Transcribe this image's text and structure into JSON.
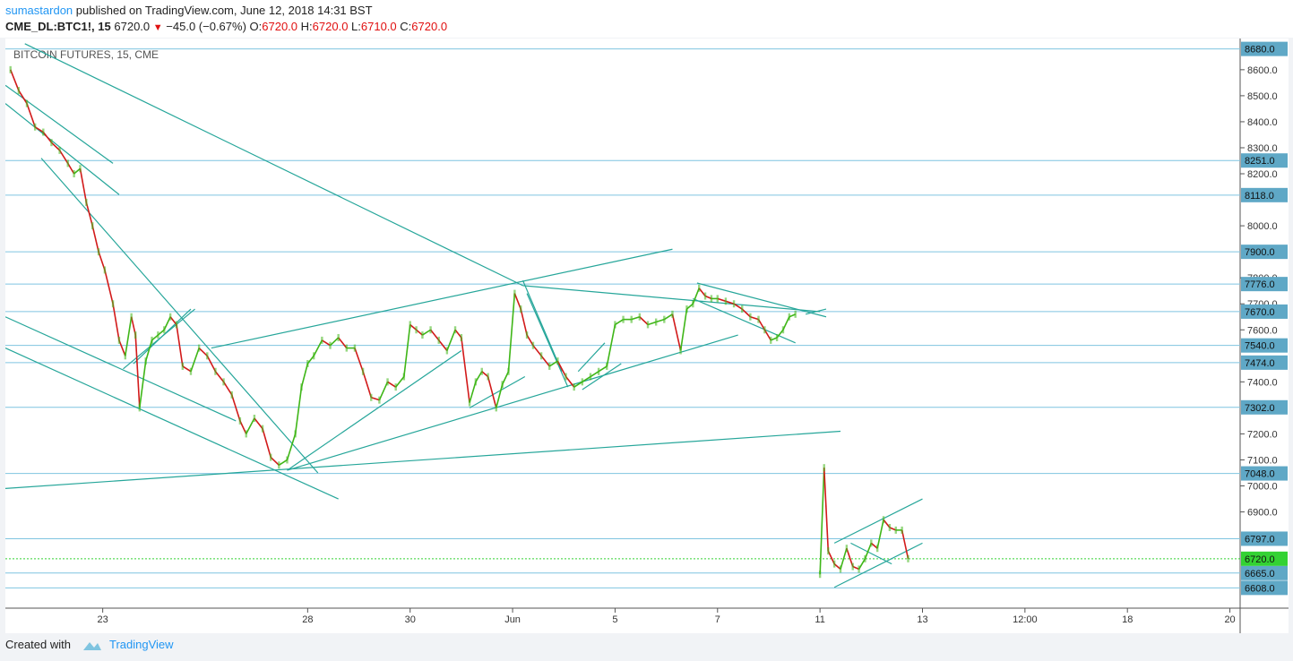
{
  "header": {
    "author": "sumastardon",
    "published_text": "published on TradingView.com, June 12, 2018 14:31 BST",
    "symbol": "CME_DL:BTC1!, 15",
    "last_price": "6720.0",
    "change": "−45.0 (−0.67%)",
    "o_label": "O:",
    "o_value": "6720.0",
    "h_label": "H:",
    "h_value": "6720.0",
    "l_label": "L:",
    "l_value": "6710.0",
    "c_label": "C:",
    "c_value": "6720.0"
  },
  "footer": {
    "created_with": "Created with",
    "brand": "TradingView"
  },
  "colors": {
    "up": "#3fb618",
    "down": "#d21a1a",
    "trend": "#26a69a",
    "level_line": "#7fc4e0",
    "label_bg": "#5fa8c6",
    "last_bg": "#33d233"
  },
  "chart_data": {
    "type": "line",
    "title": "BITCOIN FUTURES, 15, CME",
    "ylim": [
      6530,
      8720
    ],
    "y_ticks": [
      8600,
      8500,
      8400,
      8300,
      8200,
      8000,
      7800,
      7700,
      7600,
      7400,
      7200,
      7100,
      7000,
      6900
    ],
    "x_ticks": [
      {
        "label": "23",
        "t": 1.4
      },
      {
        "label": "28",
        "t": 3.4
      },
      {
        "label": "30",
        "t": 4.4
      },
      {
        "label": "Jun",
        "t": 5.4
      },
      {
        "label": "5",
        "t": 6.4
      },
      {
        "label": "7",
        "t": 7.4
      },
      {
        "label": "11",
        "t": 8.4
      },
      {
        "label": "13",
        "t": 9.4
      },
      {
        "label": "12:00",
        "t": 10.4
      },
      {
        "label": "18",
        "t": 11.4
      },
      {
        "label": "20",
        "t": 12.4
      }
    ],
    "xlim": [
      0.45,
      12.5
    ],
    "last_price": 6720,
    "levels": [
      8680,
      8251,
      8118,
      7900,
      7776,
      7670,
      7540,
      7474,
      7302,
      7048,
      6797,
      6665,
      6608
    ],
    "series": [
      {
        "values": [
          [
            0.5,
            8600
          ],
          [
            0.58,
            8520
          ],
          [
            0.66,
            8470
          ],
          [
            0.74,
            8380
          ],
          [
            0.82,
            8360
          ],
          [
            0.9,
            8320
          ],
          [
            0.98,
            8290
          ],
          [
            1.06,
            8240
          ],
          [
            1.12,
            8200
          ],
          [
            1.18,
            8220
          ],
          [
            1.24,
            8090
          ],
          [
            1.3,
            8000
          ],
          [
            1.36,
            7900
          ],
          [
            1.42,
            7830
          ],
          [
            1.5,
            7700
          ],
          [
            1.56,
            7560
          ],
          [
            1.62,
            7500
          ],
          [
            1.68,
            7650
          ],
          [
            1.72,
            7580
          ],
          [
            1.76,
            7300
          ],
          [
            1.82,
            7480
          ],
          [
            1.88,
            7560
          ],
          [
            1.94,
            7580
          ],
          [
            2.0,
            7600
          ],
          [
            2.06,
            7650
          ],
          [
            2.12,
            7620
          ],
          [
            2.18,
            7460
          ],
          [
            2.26,
            7440
          ],
          [
            2.34,
            7530
          ],
          [
            2.42,
            7500
          ],
          [
            2.5,
            7440
          ],
          [
            2.58,
            7400
          ],
          [
            2.66,
            7350
          ],
          [
            2.74,
            7250
          ],
          [
            2.8,
            7200
          ],
          [
            2.88,
            7260
          ],
          [
            2.96,
            7220
          ],
          [
            3.04,
            7110
          ],
          [
            3.12,
            7080
          ],
          [
            3.2,
            7100
          ],
          [
            3.28,
            7200
          ],
          [
            3.34,
            7380
          ],
          [
            3.4,
            7470
          ],
          [
            3.46,
            7500
          ],
          [
            3.54,
            7560
          ],
          [
            3.62,
            7540
          ],
          [
            3.7,
            7570
          ],
          [
            3.78,
            7530
          ],
          [
            3.86,
            7530
          ],
          [
            3.94,
            7440
          ],
          [
            4.02,
            7340
          ],
          [
            4.1,
            7330
          ],
          [
            4.18,
            7400
          ],
          [
            4.26,
            7380
          ],
          [
            4.34,
            7420
          ],
          [
            4.4,
            7620
          ],
          [
            4.46,
            7600
          ],
          [
            4.52,
            7580
          ],
          [
            4.6,
            7600
          ],
          [
            4.68,
            7560
          ],
          [
            4.76,
            7520
          ],
          [
            4.84,
            7600
          ],
          [
            4.9,
            7570
          ],
          [
            4.98,
            7320
          ],
          [
            5.04,
            7400
          ],
          [
            5.1,
            7440
          ],
          [
            5.16,
            7420
          ],
          [
            5.24,
            7300
          ],
          [
            5.3,
            7390
          ],
          [
            5.36,
            7440
          ],
          [
            5.42,
            7740
          ],
          [
            5.48,
            7680
          ],
          [
            5.54,
            7580
          ],
          [
            5.6,
            7540
          ],
          [
            5.68,
            7500
          ],
          [
            5.76,
            7460
          ],
          [
            5.84,
            7480
          ],
          [
            5.92,
            7420
          ],
          [
            6.0,
            7380
          ],
          [
            6.08,
            7400
          ],
          [
            6.16,
            7420
          ],
          [
            6.24,
            7440
          ],
          [
            6.32,
            7460
          ],
          [
            6.4,
            7620
          ],
          [
            6.48,
            7640
          ],
          [
            6.56,
            7640
          ],
          [
            6.64,
            7650
          ],
          [
            6.72,
            7620
          ],
          [
            6.8,
            7630
          ],
          [
            6.88,
            7640
          ],
          [
            6.96,
            7660
          ],
          [
            7.04,
            7520
          ],
          [
            7.1,
            7680
          ],
          [
            7.16,
            7700
          ],
          [
            7.22,
            7760
          ],
          [
            7.28,
            7730
          ],
          [
            7.34,
            7720
          ],
          [
            7.4,
            7720
          ],
          [
            7.48,
            7710
          ],
          [
            7.56,
            7700
          ],
          [
            7.64,
            7680
          ],
          [
            7.72,
            7650
          ],
          [
            7.8,
            7640
          ],
          [
            7.86,
            7600
          ],
          [
            7.92,
            7560
          ],
          [
            7.98,
            7570
          ],
          [
            8.04,
            7600
          ],
          [
            8.1,
            7650
          ],
          [
            8.16,
            7660
          ],
          [
            8.4,
            6660
          ],
          [
            8.44,
            7070
          ],
          [
            8.48,
            6750
          ],
          [
            8.54,
            6700
          ],
          [
            8.6,
            6680
          ],
          [
            8.66,
            6760
          ],
          [
            8.72,
            6690
          ],
          [
            8.78,
            6680
          ],
          [
            8.84,
            6720
          ],
          [
            8.9,
            6780
          ],
          [
            8.96,
            6760
          ],
          [
            9.02,
            6870
          ],
          [
            9.08,
            6840
          ],
          [
            9.14,
            6830
          ],
          [
            9.2,
            6830
          ],
          [
            9.26,
            6720
          ]
        ]
      }
    ],
    "trendlines": [
      [
        [
          0.45,
          8470
        ],
        [
          1.56,
          8120
        ]
      ],
      [
        [
          0.45,
          8540
        ],
        [
          1.5,
          8240
        ]
      ],
      [
        [
          0.8,
          8260
        ],
        [
          3.5,
          7050
        ]
      ],
      [
        [
          0.45,
          7650
        ],
        [
          2.7,
          7250
        ]
      ],
      [
        [
          0.45,
          7530
        ],
        [
          3.7,
          6950
        ]
      ],
      [
        [
          1.7,
          7470
        ],
        [
          2.26,
          7680
        ]
      ],
      [
        [
          1.6,
          7450
        ],
        [
          2.3,
          7680
        ]
      ],
      [
        [
          0.64,
          8700
        ],
        [
          5.5,
          7770
        ]
      ],
      [
        [
          5.5,
          7770
        ],
        [
          8.4,
          7670
        ]
      ],
      [
        [
          2.46,
          7530
        ],
        [
          6.96,
          7910
        ]
      ],
      [
        [
          3.2,
          7060
        ],
        [
          7.6,
          7580
        ]
      ],
      [
        [
          0.45,
          6990
        ],
        [
          8.6,
          7210
        ]
      ],
      [
        [
          3.2,
          7060
        ],
        [
          4.9,
          7520
        ]
      ],
      [
        [
          4.98,
          7300
        ],
        [
          5.52,
          7420
        ]
      ],
      [
        [
          5.5,
          7790
        ],
        [
          5.88,
          7440
        ]
      ],
      [
        [
          5.54,
          7740
        ],
        [
          5.94,
          7380
        ]
      ],
      [
        [
          6.04,
          7440
        ],
        [
          6.3,
          7550
        ]
      ],
      [
        [
          6.08,
          7370
        ],
        [
          6.46,
          7470
        ]
      ],
      [
        [
          7.2,
          7780
        ],
        [
          8.46,
          7650
        ]
      ],
      [
        [
          7.16,
          7720
        ],
        [
          8.16,
          7550
        ]
      ],
      [
        [
          8.26,
          7660
        ],
        [
          8.46,
          7680
        ]
      ],
      [
        [
          8.54,
          6780
        ],
        [
          9.4,
          6950
        ]
      ],
      [
        [
          8.54,
          6610
        ],
        [
          9.4,
          6780
        ]
      ],
      [
        [
          8.7,
          6780
        ],
        [
          9.1,
          6700
        ]
      ]
    ]
  }
}
